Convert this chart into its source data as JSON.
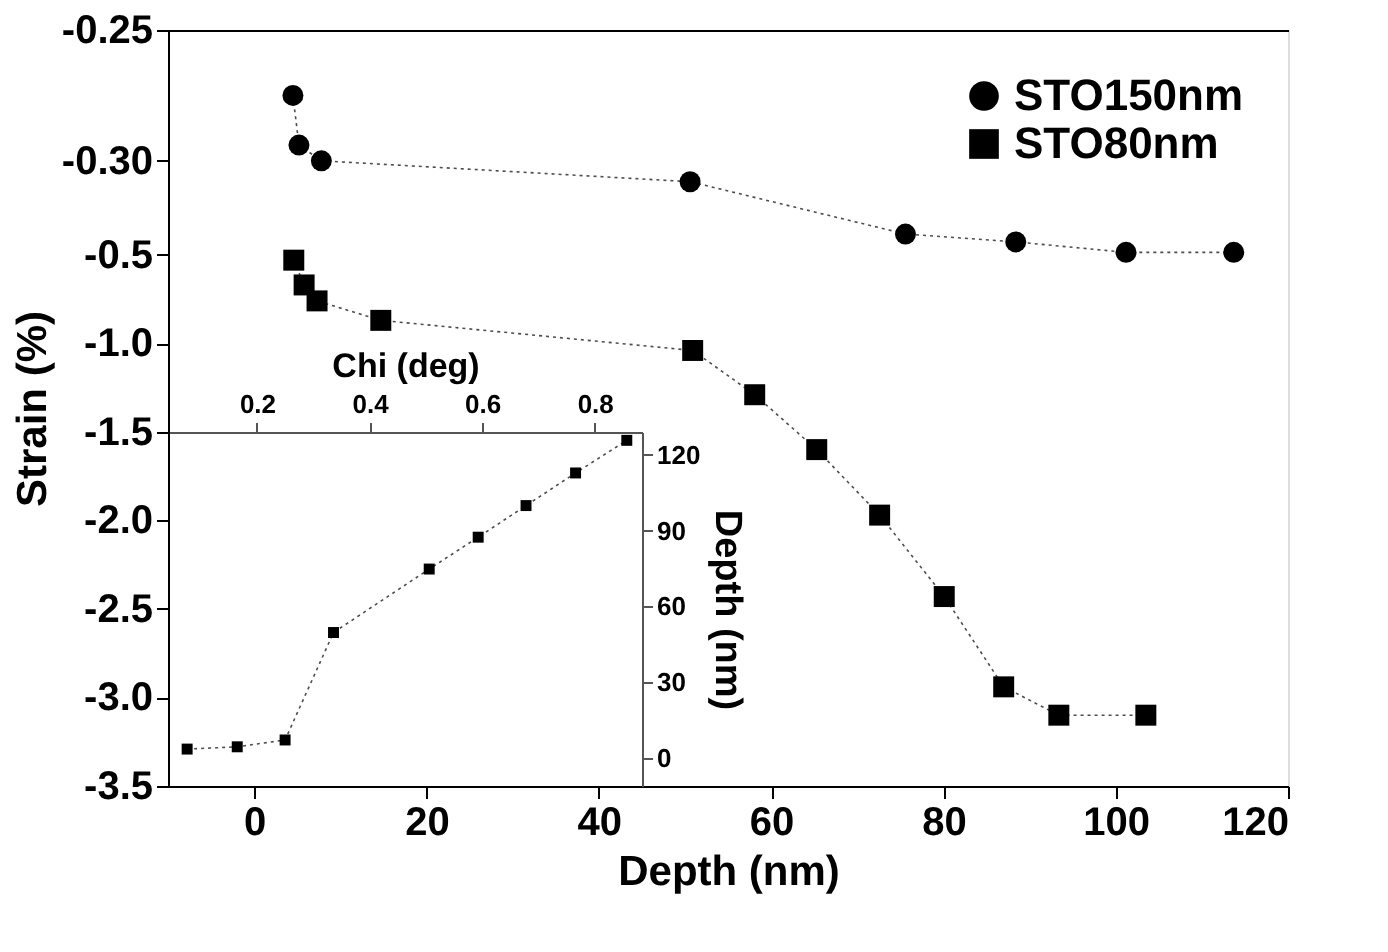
{
  "chart_data": [
    {
      "type": "line",
      "xlabel": "Depth (nm)",
      "ylabel": "Strain (%)",
      "xlim": [
        -10,
        120
      ],
      "xticks": [
        0,
        20,
        40,
        60,
        80,
        100,
        120
      ],
      "y2lim": [
        -3.5,
        0.77
      ],
      "y2ticks": [
        {
          "value": -0.5,
          "label": "-0.5"
        },
        {
          "value": -1.0,
          "label": "-1.0"
        },
        {
          "value": -1.5,
          "label": "-1.5"
        },
        {
          "value": -2.0,
          "label": "-2.0"
        },
        {
          "value": -2.5,
          "label": "-2.5"
        },
        {
          "value": -3.0,
          "label": "-3.0"
        },
        {
          "value": -3.5,
          "label": "-3.5"
        }
      ],
      "ylim": [
        -0.539,
        -0.25
      ],
      "yticks": [
        {
          "value": -0.25,
          "label": "-0.25"
        },
        {
          "value": -0.3,
          "label": "-0.30"
        }
      ],
      "legend": "top right",
      "line_style": "dotted",
      "series": [
        {
          "name": "STO150nm",
          "color": "#000000",
          "marker": "circle",
          "x": [
            4.5,
            5.2,
            7.8,
            50.6,
            75.6,
            88.4,
            101.2,
            113.7
          ],
          "values": [
            -0.275,
            -0.294,
            -0.3,
            -0.308,
            -0.328,
            -0.331,
            -0.335,
            -0.335
          ]
        },
        {
          "name": "STO80nm",
          "color": "#000000",
          "axis": "y2",
          "marker": "square",
          "x": [
            4.6,
            5.8,
            7.3,
            14.7,
            50.9,
            58.1,
            65.3,
            72.6,
            80.1,
            87.0,
            93.4,
            103.5
          ],
          "values": [
            -0.53,
            -0.67,
            -0.76,
            -0.87,
            -1.04,
            -1.29,
            -1.6,
            -1.97,
            -2.43,
            -2.94,
            -3.1,
            -3.1
          ]
        }
      ]
    },
    {
      "type": "line",
      "xlabel": "Chi (deg)",
      "ylabel": "Depth (nm)",
      "xlim": [
        0.042,
        0.884
      ],
      "xticks": [
        0.2,
        0.4,
        0.6,
        0.8
      ],
      "ylim": [
        -11,
        129
      ],
      "yticks": [
        0,
        30,
        60,
        90,
        120
      ],
      "marker": "square",
      "line_style": "dotted",
      "series": [
        {
          "color": "#000000",
          "x": [
            0.076,
            0.165,
            0.25,
            0.336,
            0.506,
            0.593,
            0.678,
            0.766,
            0.857
          ],
          "values": [
            3.6,
            4.5,
            7.2,
            49.7,
            74.8,
            87.4,
            99.9,
            112.8,
            125.7
          ]
        }
      ]
    }
  ]
}
